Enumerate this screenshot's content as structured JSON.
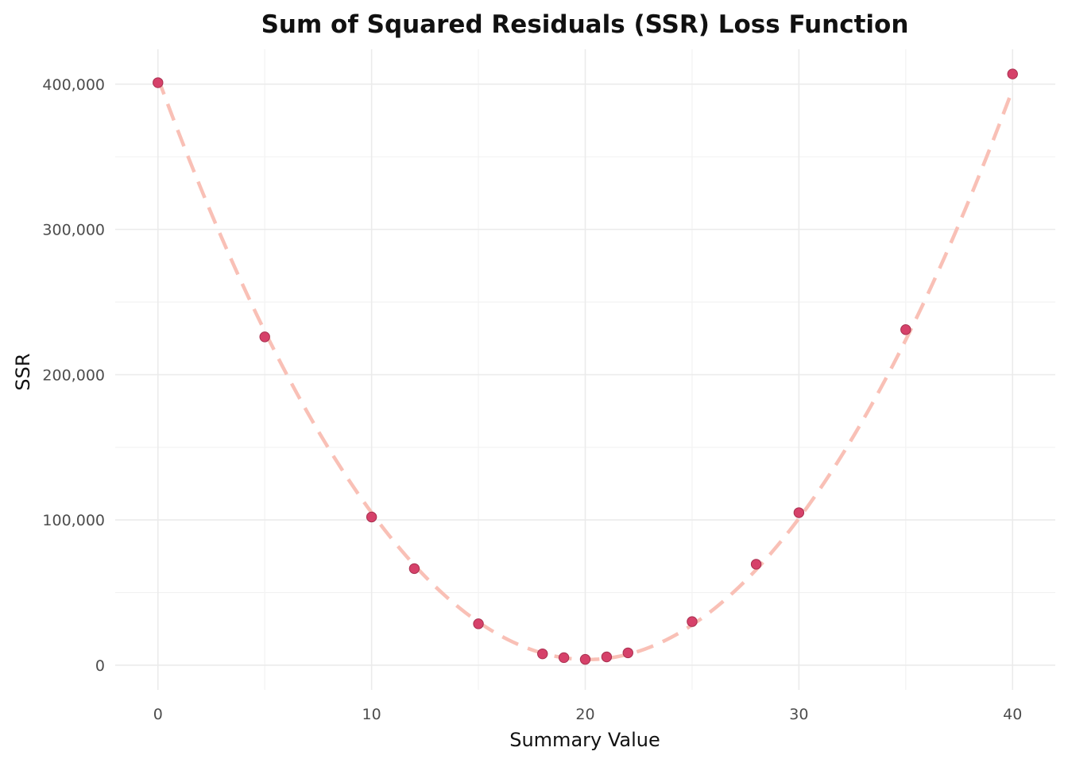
{
  "chart_data": {
    "type": "scatter",
    "title": "Sum of Squared Residuals (SSR) Loss Function",
    "xlabel": "Summary Value",
    "ylabel": "SSR",
    "xlim": [
      -2,
      42
    ],
    "ylim": [
      -17000,
      424000
    ],
    "x_ticks": [
      0,
      10,
      20,
      30,
      40
    ],
    "x_tick_labels": [
      "0",
      "10",
      "20",
      "30",
      "40"
    ],
    "x_minor_ticks": [
      5,
      15,
      25,
      35
    ],
    "y_ticks": [
      0,
      100000,
      200000,
      300000,
      400000
    ],
    "y_tick_labels": [
      "0",
      "100,000",
      "200,000",
      "300,000",
      "400,000"
    ],
    "y_minor_ticks": [
      50000,
      150000,
      250000,
      350000
    ],
    "grid": true,
    "legend": "none",
    "series": [
      {
        "kind": "points",
        "color": "#d6416a",
        "x": [
          0,
          5,
          10,
          12,
          15,
          18,
          19,
          20,
          21,
          22,
          25,
          28,
          30,
          35,
          40
        ],
        "y": [
          401000,
          226000,
          102000,
          66500,
          28500,
          7800,
          5200,
          4000,
          5700,
          8500,
          30000,
          69500,
          105000,
          231000,
          407000
        ]
      },
      {
        "kind": "fit-curve",
        "style": "dashed",
        "color": "#f9c0b6",
        "coefficients": {
          "a": 991,
          "vertex_x": 20.1,
          "c": 3900
        }
      }
    ]
  }
}
